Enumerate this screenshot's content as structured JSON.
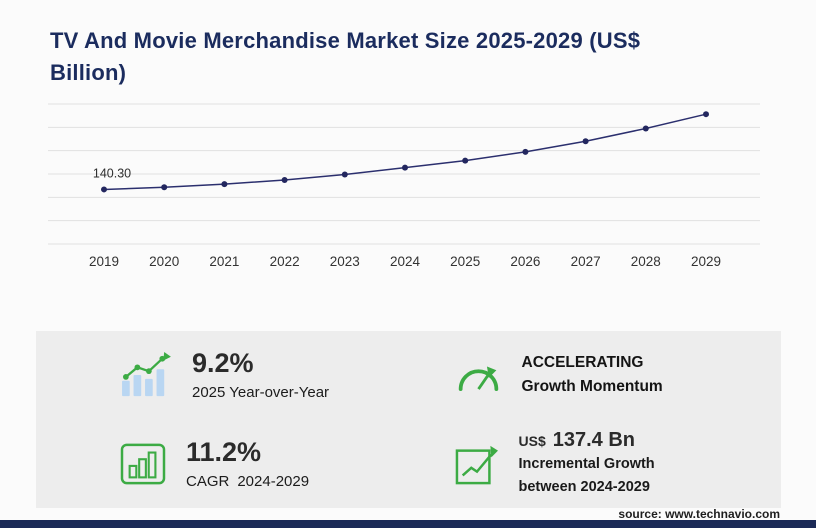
{
  "title": "TV And Movie Merchandise Market Size 2025-2029 (US$ Billion)",
  "chart_data": {
    "type": "line",
    "title": "TV And Movie Merchandise Market Size 2025-2029 (US$ Billion)",
    "x": [
      "2019",
      "2020",
      "2021",
      "2022",
      "2023",
      "2024",
      "2025",
      "2026",
      "2027",
      "2028",
      "2029"
    ],
    "values": [
      140.3,
      145.9,
      153.9,
      164.7,
      178.7,
      196.4,
      214.4,
      237.0,
      264.1,
      297.1,
      333.8
    ],
    "first_point_label": "140.30",
    "xlabel": "",
    "ylabel": "US$ Billion",
    "ylim": [
      0,
      360
    ],
    "grid_step": 60,
    "grid": true,
    "legend": "none",
    "line_color": "#2b2f6e",
    "marker_color": "#23275f"
  },
  "stats": {
    "yoy": {
      "value": "9.2%",
      "label": "2025 Year-over-Year"
    },
    "momentum": {
      "line1": "ACCELERATING",
      "line2": "Growth Momentum"
    },
    "cagr": {
      "value": "11.2%",
      "label": "CAGR",
      "range": "2024-2029"
    },
    "incremental": {
      "currency": "US$",
      "amount": "137.4 Bn",
      "line1": "Incremental Growth",
      "line2": "between 2024-2029"
    }
  },
  "footer": {
    "source": "source: www.technavio.com"
  },
  "colors": {
    "accent_green": "#3cab44",
    "navy_title": "#1b2c5e",
    "navy_bar": "#1b2a57",
    "panel_bg": "#ededed",
    "bar_icon_fill": "#b9d6f2"
  }
}
